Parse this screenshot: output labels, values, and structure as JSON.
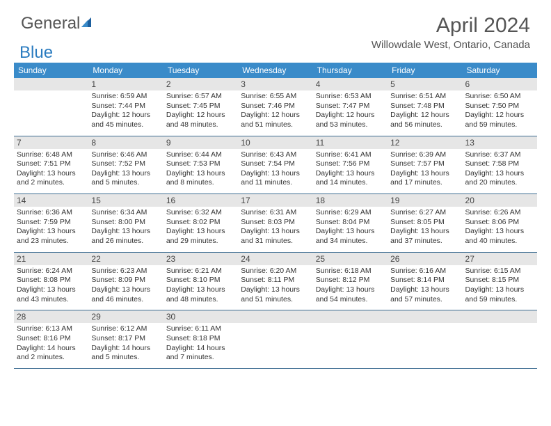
{
  "logo": {
    "text1": "General",
    "text2": "Blue",
    "color_general": "#555555",
    "color_blue": "#2b7cc0"
  },
  "title": "April 2024",
  "location": "Willowdale West, Ontario, Canada",
  "theme": {
    "header_bg": "#3a8bc9",
    "header_text": "#ffffff",
    "daynum_bg": "#e6e6e6",
    "border_color": "#3a6a90",
    "text_color": "#333333",
    "title_color": "#555555"
  },
  "weekdays": [
    "Sunday",
    "Monday",
    "Tuesday",
    "Wednesday",
    "Thursday",
    "Friday",
    "Saturday"
  ],
  "start_offset": 1,
  "days": [
    {
      "n": 1,
      "sunrise": "6:59 AM",
      "sunset": "7:44 PM",
      "daylight": "12 hours and 45 minutes."
    },
    {
      "n": 2,
      "sunrise": "6:57 AM",
      "sunset": "7:45 PM",
      "daylight": "12 hours and 48 minutes."
    },
    {
      "n": 3,
      "sunrise": "6:55 AM",
      "sunset": "7:46 PM",
      "daylight": "12 hours and 51 minutes."
    },
    {
      "n": 4,
      "sunrise": "6:53 AM",
      "sunset": "7:47 PM",
      "daylight": "12 hours and 53 minutes."
    },
    {
      "n": 5,
      "sunrise": "6:51 AM",
      "sunset": "7:48 PM",
      "daylight": "12 hours and 56 minutes."
    },
    {
      "n": 6,
      "sunrise": "6:50 AM",
      "sunset": "7:50 PM",
      "daylight": "12 hours and 59 minutes."
    },
    {
      "n": 7,
      "sunrise": "6:48 AM",
      "sunset": "7:51 PM",
      "daylight": "13 hours and 2 minutes."
    },
    {
      "n": 8,
      "sunrise": "6:46 AM",
      "sunset": "7:52 PM",
      "daylight": "13 hours and 5 minutes."
    },
    {
      "n": 9,
      "sunrise": "6:44 AM",
      "sunset": "7:53 PM",
      "daylight": "13 hours and 8 minutes."
    },
    {
      "n": 10,
      "sunrise": "6:43 AM",
      "sunset": "7:54 PM",
      "daylight": "13 hours and 11 minutes."
    },
    {
      "n": 11,
      "sunrise": "6:41 AM",
      "sunset": "7:56 PM",
      "daylight": "13 hours and 14 minutes."
    },
    {
      "n": 12,
      "sunrise": "6:39 AM",
      "sunset": "7:57 PM",
      "daylight": "13 hours and 17 minutes."
    },
    {
      "n": 13,
      "sunrise": "6:37 AM",
      "sunset": "7:58 PM",
      "daylight": "13 hours and 20 minutes."
    },
    {
      "n": 14,
      "sunrise": "6:36 AM",
      "sunset": "7:59 PM",
      "daylight": "13 hours and 23 minutes."
    },
    {
      "n": 15,
      "sunrise": "6:34 AM",
      "sunset": "8:00 PM",
      "daylight": "13 hours and 26 minutes."
    },
    {
      "n": 16,
      "sunrise": "6:32 AM",
      "sunset": "8:02 PM",
      "daylight": "13 hours and 29 minutes."
    },
    {
      "n": 17,
      "sunrise": "6:31 AM",
      "sunset": "8:03 PM",
      "daylight": "13 hours and 31 minutes."
    },
    {
      "n": 18,
      "sunrise": "6:29 AM",
      "sunset": "8:04 PM",
      "daylight": "13 hours and 34 minutes."
    },
    {
      "n": 19,
      "sunrise": "6:27 AM",
      "sunset": "8:05 PM",
      "daylight": "13 hours and 37 minutes."
    },
    {
      "n": 20,
      "sunrise": "6:26 AM",
      "sunset": "8:06 PM",
      "daylight": "13 hours and 40 minutes."
    },
    {
      "n": 21,
      "sunrise": "6:24 AM",
      "sunset": "8:08 PM",
      "daylight": "13 hours and 43 minutes."
    },
    {
      "n": 22,
      "sunrise": "6:23 AM",
      "sunset": "8:09 PM",
      "daylight": "13 hours and 46 minutes."
    },
    {
      "n": 23,
      "sunrise": "6:21 AM",
      "sunset": "8:10 PM",
      "daylight": "13 hours and 48 minutes."
    },
    {
      "n": 24,
      "sunrise": "6:20 AM",
      "sunset": "8:11 PM",
      "daylight": "13 hours and 51 minutes."
    },
    {
      "n": 25,
      "sunrise": "6:18 AM",
      "sunset": "8:12 PM",
      "daylight": "13 hours and 54 minutes."
    },
    {
      "n": 26,
      "sunrise": "6:16 AM",
      "sunset": "8:14 PM",
      "daylight": "13 hours and 57 minutes."
    },
    {
      "n": 27,
      "sunrise": "6:15 AM",
      "sunset": "8:15 PM",
      "daylight": "13 hours and 59 minutes."
    },
    {
      "n": 28,
      "sunrise": "6:13 AM",
      "sunset": "8:16 PM",
      "daylight": "14 hours and 2 minutes."
    },
    {
      "n": 29,
      "sunrise": "6:12 AM",
      "sunset": "8:17 PM",
      "daylight": "14 hours and 5 minutes."
    },
    {
      "n": 30,
      "sunrise": "6:11 AM",
      "sunset": "8:18 PM",
      "daylight": "14 hours and 7 minutes."
    }
  ]
}
